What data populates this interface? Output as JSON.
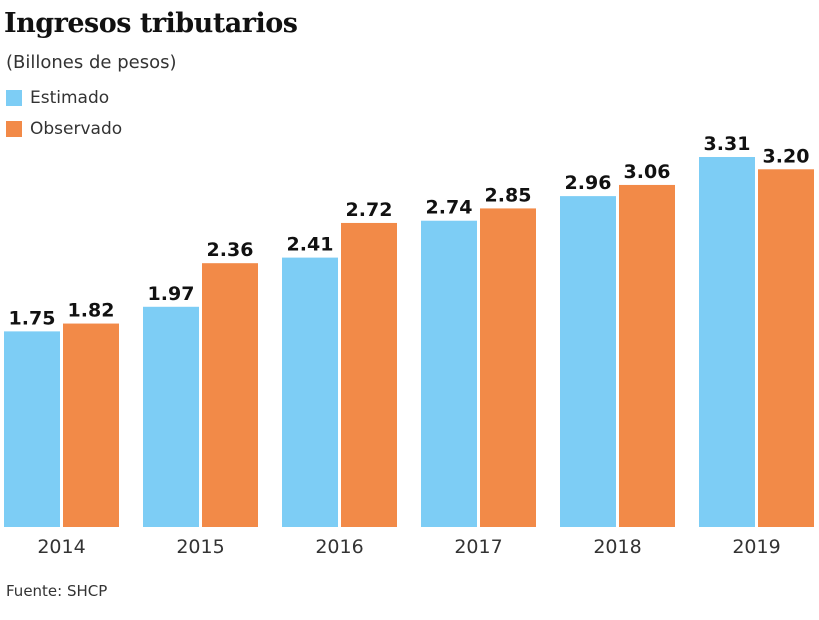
{
  "chart_data": {
    "type": "bar",
    "title": "Ingresos tributarios",
    "subtitle": "(Billones de pesos)",
    "categories": [
      "2014",
      "2015",
      "2016",
      "2017",
      "2018",
      "2019"
    ],
    "series": [
      {
        "name": "Estimado",
        "color": "#7dcdf5",
        "values": [
          1.75,
          1.97,
          2.41,
          2.74,
          2.96,
          3.31
        ],
        "labels": [
          "1.75",
          "1.97",
          "2.41",
          "2.74",
          "2.96",
          "3.31"
        ]
      },
      {
        "name": "Observado",
        "color": "#f28a48",
        "values": [
          1.82,
          2.36,
          2.72,
          2.85,
          3.06,
          3.2
        ],
        "labels": [
          "1.82",
          "2.36",
          "2.72",
          "2.85",
          "3.06",
          "3.20"
        ]
      }
    ],
    "ylim": [
      0,
      3.31
    ],
    "grid": false,
    "legend_placement": "top-left",
    "source": "Fuente: SHCP"
  }
}
